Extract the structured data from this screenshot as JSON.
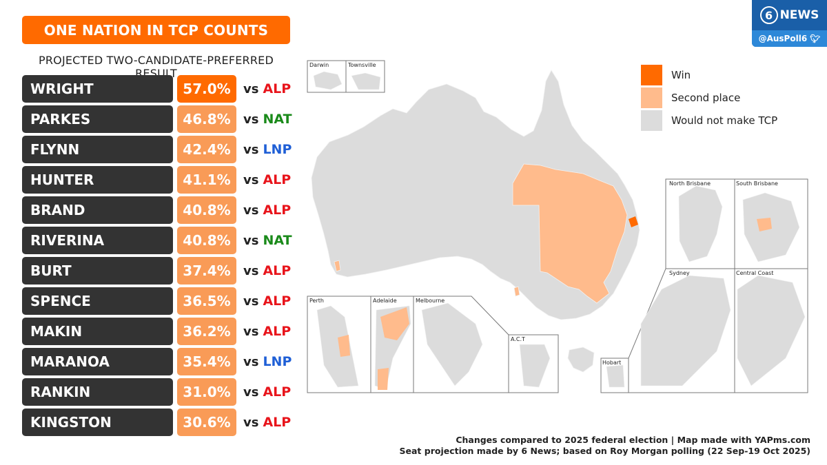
{
  "header": {
    "title": "ONE NATION IN TCP COUNTS",
    "subtitle": "PROJECTED TWO-CANDIDATE-PREFERRED RESULT"
  },
  "results": [
    {
      "seat": "WRIGHT",
      "pct": "57.0%",
      "vs": "vs",
      "opponent": "ALP",
      "status": "win"
    },
    {
      "seat": "PARKES",
      "pct": "46.8%",
      "vs": "vs",
      "opponent": "NAT",
      "status": "second"
    },
    {
      "seat": "FLYNN",
      "pct": "42.4%",
      "vs": "vs",
      "opponent": "LNP",
      "status": "second"
    },
    {
      "seat": "HUNTER",
      "pct": "41.1%",
      "vs": "vs",
      "opponent": "ALP",
      "status": "second"
    },
    {
      "seat": "BRAND",
      "pct": "40.8%",
      "vs": "vs",
      "opponent": "ALP",
      "status": "second"
    },
    {
      "seat": "RIVERINA",
      "pct": "40.8%",
      "vs": "vs",
      "opponent": "NAT",
      "status": "second"
    },
    {
      "seat": "BURT",
      "pct": "37.4%",
      "vs": "vs",
      "opponent": "ALP",
      "status": "second"
    },
    {
      "seat": "SPENCE",
      "pct": "36.5%",
      "vs": "vs",
      "opponent": "ALP",
      "status": "second"
    },
    {
      "seat": "MAKIN",
      "pct": "36.2%",
      "vs": "vs",
      "opponent": "ALP",
      "status": "second"
    },
    {
      "seat": "MARANOA",
      "pct": "35.4%",
      "vs": "vs",
      "opponent": "LNP",
      "status": "second"
    },
    {
      "seat": "RANKIN",
      "pct": "31.0%",
      "vs": "vs",
      "opponent": "ALP",
      "status": "second"
    },
    {
      "seat": "KINGSTON",
      "pct": "30.6%",
      "vs": "vs",
      "opponent": "ALP",
      "status": "second"
    }
  ],
  "party_colors": {
    "ALP": "#e8141b",
    "NAT": "#1a8a1a",
    "LNP": "#1f5fd6"
  },
  "status_colors": {
    "win": "#ff6a00",
    "second": "#f99b57"
  },
  "legend": [
    {
      "label": "Win",
      "color": "#ff6a00"
    },
    {
      "label": "Second place",
      "color": "#ffbb8c"
    },
    {
      "label": "Would not make TCP",
      "color": "#dcdcdc"
    }
  ],
  "map": {
    "insets": [
      "Darwin",
      "Townsville",
      "North Brisbane",
      "South Brisbane",
      "Sydney",
      "Central Coast",
      "Perth",
      "Adelaide",
      "Melbourne",
      "A.C.T",
      "Hobart"
    ],
    "colors": {
      "land": "#dcdcdc",
      "second": "#ffbb8c",
      "win": "#ff6a00"
    }
  },
  "brand": {
    "number": "6",
    "name": "NEWS",
    "handle": "@AusPoll6",
    "bird_icon": "twitter-bird-icon",
    "colors": {
      "top": "#1a5fa8",
      "bottom": "#2d88d8"
    }
  },
  "footer": {
    "line1": "Changes compared to 2025 federal election | Map made with YAPms.com",
    "line2": "Seat projection made by 6 News; based on Roy Morgan polling (22 Sep-19 Oct 2025)"
  }
}
